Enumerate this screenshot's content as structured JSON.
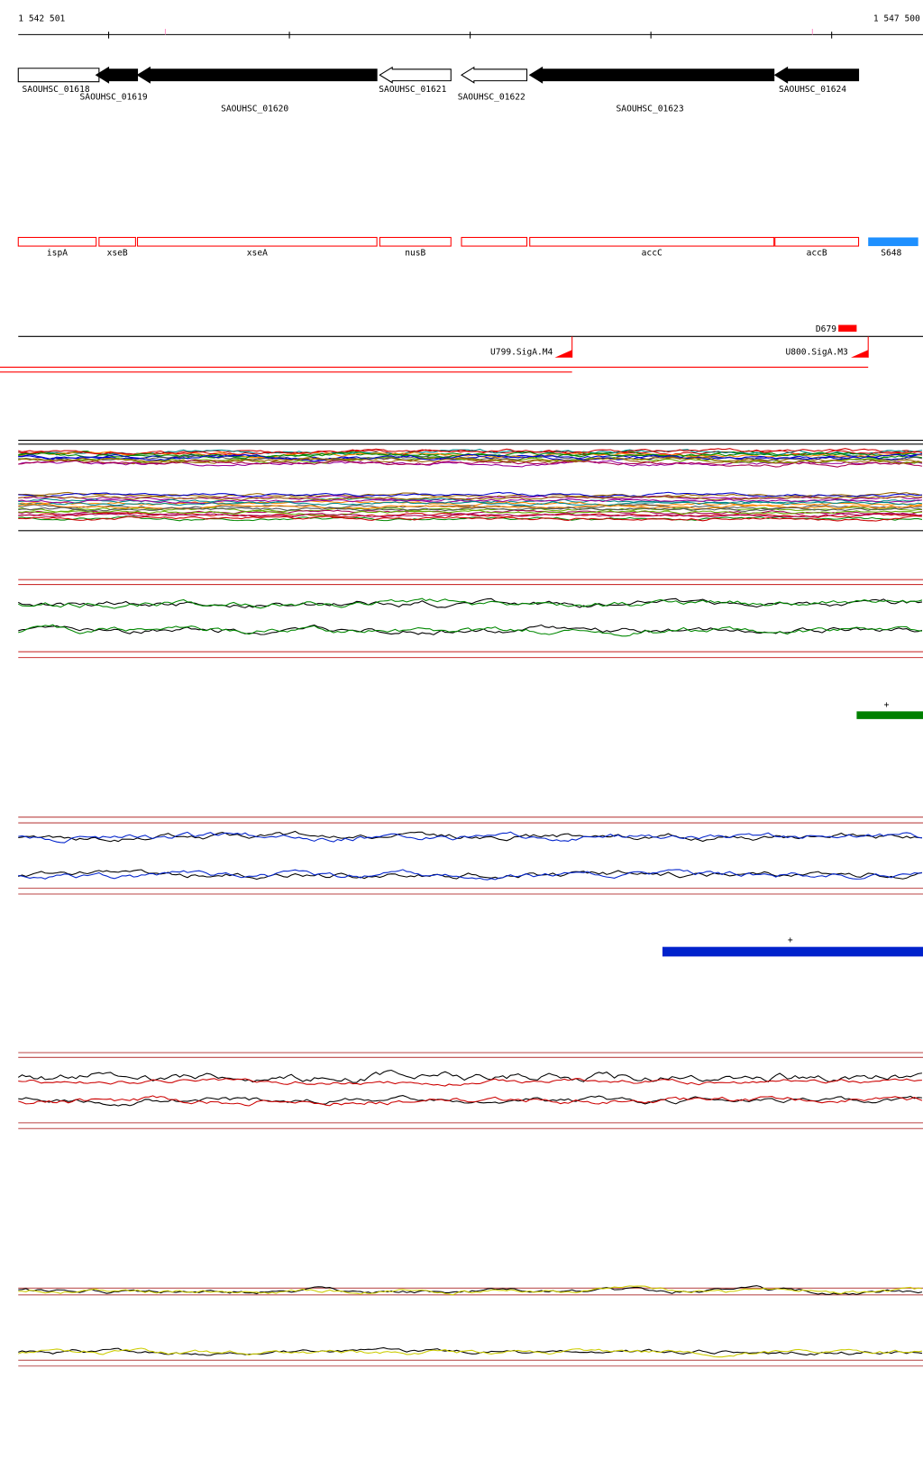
{
  "ruler": {
    "start": "1 542 501",
    "end": "1 547 500"
  },
  "genes": [
    "SAOUHSC_01618",
    "SAOUHSC_01619",
    "SAOUHSC_01620",
    "SAOUHSC_01621",
    "SAOUHSC_01622",
    "SAOUHSC_01623",
    "SAOUHSC_01624"
  ],
  "gene_names": [
    "ispA",
    "xseB",
    "xseA",
    "nusB",
    "accC",
    "accB"
  ],
  "features": {
    "s_label": "S648",
    "d_label": "D679",
    "promoters": [
      "U799.SigA.M4",
      "U800.SigA.M3"
    ]
  },
  "tracks": {
    "green_strand": "+",
    "blue_strand": "+"
  }
}
